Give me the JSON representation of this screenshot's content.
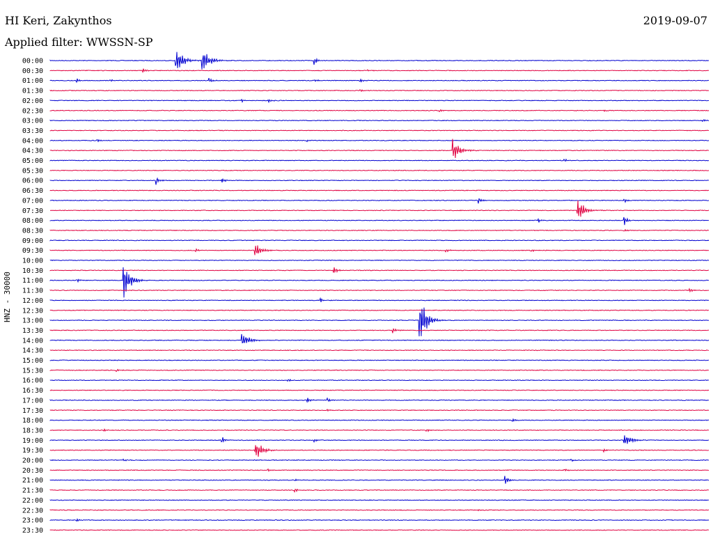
{
  "header": {
    "station": "HI Keri, Zakynthos",
    "date": "2019-09-07",
    "filter": "Applied filter: WWSSN-SP",
    "channel_label": "HNZ - 30000"
  },
  "chart_data": {
    "type": "line",
    "title": "HI Keri, Zakynthos",
    "ylabel": "HNZ - 30000",
    "colors": {
      "even": "#0000d0",
      "odd": "#e00040"
    },
    "rows": [
      {
        "label": "00:00",
        "events": [
          {
            "t": 0.19,
            "a": 20
          },
          {
            "t": 0.23,
            "a": 18
          },
          {
            "t": 0.4,
            "a": 7
          }
        ]
      },
      {
        "label": "00:30",
        "events": [
          {
            "t": 0.14,
            "a": 4
          },
          {
            "t": 0.48,
            "a": 3
          }
        ]
      },
      {
        "label": "01:00",
        "events": [
          {
            "t": 0.04,
            "a": 3
          },
          {
            "t": 0.09,
            "a": 2
          },
          {
            "t": 0.24,
            "a": 5
          },
          {
            "t": 0.4,
            "a": 3
          },
          {
            "t": 0.47,
            "a": 4
          }
        ]
      },
      {
        "label": "01:30",
        "events": [
          {
            "t": 0.47,
            "a": 2
          }
        ]
      },
      {
        "label": "02:00",
        "events": [
          {
            "t": 0.29,
            "a": 3
          },
          {
            "t": 0.33,
            "a": 4
          }
        ]
      },
      {
        "label": "02:30",
        "events": [
          {
            "t": 0.59,
            "a": 3
          },
          {
            "t": 0.84,
            "a": 2
          }
        ]
      },
      {
        "label": "03:00",
        "events": [
          {
            "t": 0.99,
            "a": 3
          }
        ]
      },
      {
        "label": "03:30",
        "events": []
      },
      {
        "label": "04:00",
        "events": [
          {
            "t": 0.07,
            "a": 3
          },
          {
            "t": 0.39,
            "a": 2
          }
        ]
      },
      {
        "label": "04:30",
        "events": [
          {
            "t": 0.61,
            "a": 16
          }
        ]
      },
      {
        "label": "05:00",
        "events": [
          {
            "t": 0.78,
            "a": 3
          }
        ]
      },
      {
        "label": "05:30",
        "events": []
      },
      {
        "label": "06:00",
        "events": [
          {
            "t": 0.16,
            "a": 8
          },
          {
            "t": 0.26,
            "a": 5
          }
        ]
      },
      {
        "label": "06:30",
        "events": []
      },
      {
        "label": "07:00",
        "events": [
          {
            "t": 0.65,
            "a": 5
          },
          {
            "t": 0.87,
            "a": 5
          }
        ]
      },
      {
        "label": "07:30",
        "events": [
          {
            "t": 0.8,
            "a": 17
          }
        ]
      },
      {
        "label": "08:00",
        "events": [
          {
            "t": 0.74,
            "a": 4
          },
          {
            "t": 0.87,
            "a": 10
          }
        ]
      },
      {
        "label": "08:30",
        "events": [
          {
            "t": 0.87,
            "a": 3
          }
        ]
      },
      {
        "label": "09:00",
        "events": []
      },
      {
        "label": "09:30",
        "events": [
          {
            "t": 0.22,
            "a": 3
          },
          {
            "t": 0.31,
            "a": 11
          },
          {
            "t": 0.6,
            "a": 3
          },
          {
            "t": 0.73,
            "a": 3
          }
        ]
      },
      {
        "label": "10:00",
        "events": []
      },
      {
        "label": "10:30",
        "events": [
          {
            "t": 0.43,
            "a": 8
          }
        ]
      },
      {
        "label": "11:00",
        "events": [
          {
            "t": 0.04,
            "a": 3
          },
          {
            "t": 0.11,
            "a": 28
          }
        ]
      },
      {
        "label": "11:30",
        "events": [
          {
            "t": 0.97,
            "a": 3
          }
        ]
      },
      {
        "label": "12:00",
        "events": [
          {
            "t": 0.41,
            "a": 4
          }
        ]
      },
      {
        "label": "12:30",
        "events": []
      },
      {
        "label": "13:00",
        "events": [
          {
            "t": 0.56,
            "a": 36
          }
        ]
      },
      {
        "label": "13:30",
        "events": [
          {
            "t": 0.52,
            "a": 4
          }
        ]
      },
      {
        "label": "14:00",
        "events": [
          {
            "t": 0.29,
            "a": 11
          }
        ]
      },
      {
        "label": "14:30",
        "events": []
      },
      {
        "label": "15:00",
        "events": []
      },
      {
        "label": "15:30",
        "events": [
          {
            "t": 0.1,
            "a": 4
          }
        ]
      },
      {
        "label": "16:00",
        "events": [
          {
            "t": 0.36,
            "a": 2
          }
        ]
      },
      {
        "label": "16:30",
        "events": []
      },
      {
        "label": "17:00",
        "events": [
          {
            "t": 0.39,
            "a": 6
          },
          {
            "t": 0.42,
            "a": 4
          }
        ]
      },
      {
        "label": "17:30",
        "events": [
          {
            "t": 0.42,
            "a": 2
          }
        ]
      },
      {
        "label": "18:00",
        "events": [
          {
            "t": 0.7,
            "a": 4
          }
        ]
      },
      {
        "label": "18:30",
        "events": [
          {
            "t": 0.08,
            "a": 3
          },
          {
            "t": 0.57,
            "a": 3
          }
        ]
      },
      {
        "label": "19:00",
        "events": [
          {
            "t": 0.26,
            "a": 6
          },
          {
            "t": 0.4,
            "a": 3
          },
          {
            "t": 0.87,
            "a": 12
          }
        ]
      },
      {
        "label": "19:30",
        "events": [
          {
            "t": 0.31,
            "a": 16
          },
          {
            "t": 0.84,
            "a": 3
          }
        ]
      },
      {
        "label": "20:00",
        "events": [
          {
            "t": 0.11,
            "a": 2
          },
          {
            "t": 0.79,
            "a": 3
          }
        ]
      },
      {
        "label": "20:30",
        "events": [
          {
            "t": 0.33,
            "a": 3
          },
          {
            "t": 0.78,
            "a": 3
          }
        ]
      },
      {
        "label": "21:00",
        "events": [
          {
            "t": 0.37,
            "a": 3
          },
          {
            "t": 0.69,
            "a": 9
          }
        ]
      },
      {
        "label": "21:30",
        "events": [
          {
            "t": 0.37,
            "a": 4
          }
        ]
      },
      {
        "label": "22:00",
        "events": []
      },
      {
        "label": "22:30",
        "events": [
          {
            "t": 0.65,
            "a": 2
          }
        ]
      },
      {
        "label": "23:00",
        "events": [
          {
            "t": 0.04,
            "a": 2
          }
        ]
      },
      {
        "label": "23:30",
        "events": []
      }
    ]
  }
}
